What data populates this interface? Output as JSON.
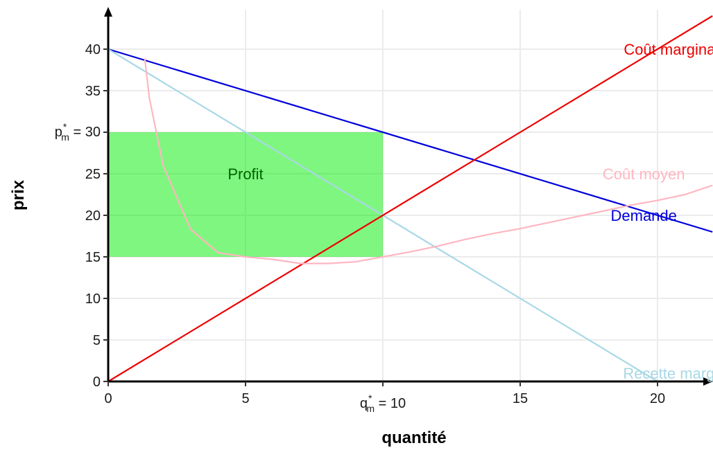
{
  "chart_data": {
    "type": "line",
    "xlabel": "quantité",
    "ylabel": "prix",
    "xlim": [
      0,
      22
    ],
    "ylim": [
      0,
      44
    ],
    "x_ticks": [
      {
        "value": 0,
        "label": "0"
      },
      {
        "value": 5,
        "label": "5"
      },
      {
        "value": 15,
        "label": "15"
      },
      {
        "value": 20,
        "label": "20"
      }
    ],
    "y_ticks": [
      {
        "value": 0,
        "label": "0"
      },
      {
        "value": 5,
        "label": "5"
      },
      {
        "value": 10,
        "label": "10"
      },
      {
        "value": 15,
        "label": "15"
      },
      {
        "value": 20,
        "label": "20"
      },
      {
        "value": 25,
        "label": "25"
      },
      {
        "value": 35,
        "label": "35"
      },
      {
        "value": 40,
        "label": "40"
      }
    ],
    "special_ticks": {
      "q_star": {
        "value": 10,
        "base": "q",
        "sub": "m",
        "sup": "*",
        "rest": " = 10"
      },
      "p_star": {
        "value": 30,
        "base": "p",
        "sub": "m",
        "sup": "*",
        "rest": " = 30"
      }
    },
    "grid": true,
    "profit_area": {
      "x": [
        0,
        10
      ],
      "y": [
        15,
        30
      ],
      "label": "Profit",
      "label_at": [
        5,
        25
      ],
      "color": "#00ee00"
    },
    "series": [
      {
        "name": "Demande",
        "color": "#0000dd",
        "x": [
          0,
          22
        ],
        "y": [
          40,
          18
        ],
        "label_at": [
          19.5,
          20
        ]
      },
      {
        "name": "Recette marginale",
        "color": "#a8d8e6",
        "x": [
          0,
          20
        ],
        "y": [
          40,
          0
        ],
        "label_at": [
          21,
          1
        ]
      },
      {
        "name": "Coût marginal",
        "color": "#ee0000",
        "x": [
          0,
          22
        ],
        "y": [
          0,
          44
        ],
        "label_at": [
          20.5,
          40
        ]
      },
      {
        "name": "Coût moyen",
        "color": "#ffb6c1",
        "x": [
          1.33,
          1.5,
          2,
          3,
          4,
          5,
          6,
          7,
          8,
          9,
          10,
          11,
          12,
          13,
          14,
          15,
          16,
          17,
          18,
          19,
          20,
          21,
          22
        ],
        "y": [
          38.9,
          34.1,
          26.0,
          18.3,
          15.5,
          15.0,
          14.7,
          14.2,
          14.2,
          14.4,
          15.0,
          15.6,
          16.3,
          17.1,
          17.8,
          18.4,
          19.1,
          19.8,
          20.5,
          21.2,
          21.8,
          22.5,
          23.6
        ],
        "label_at": [
          19.5,
          25
        ]
      }
    ]
  }
}
